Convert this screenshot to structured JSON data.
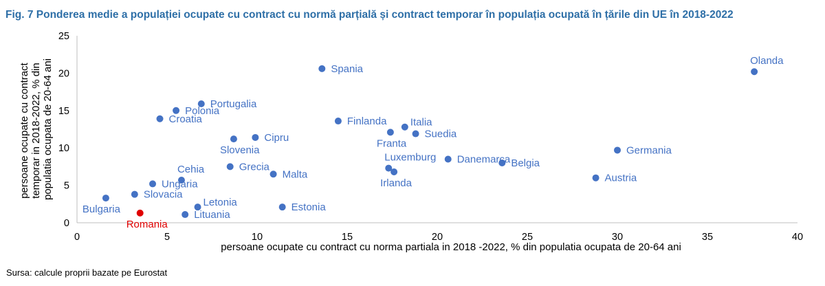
{
  "title": "Fig. 7 Ponderea medie a populației ocupate cu contract cu normă parțială și contract temporar în populația ocupată în țările din UE în 2018-2022",
  "source": "Sursa: calcule proprii bazate pe Eurostat",
  "chart_data": {
    "type": "scatter",
    "xlabel": "persoane ocupate cu contract cu norma partiala in 2018 -2022, % din populatia ocupata de 20-64 ani",
    "ylabel": [
      "persoane ocupate cu contract",
      "temporar in 2018-2022, % din",
      "populatia ocupata de 20-64 ani"
    ],
    "xlim": [
      0,
      40
    ],
    "ylim": [
      0,
      25
    ],
    "xticks": [
      0,
      5,
      10,
      15,
      20,
      25,
      30,
      35,
      40
    ],
    "yticks": [
      0,
      5,
      10,
      15,
      20,
      25
    ],
    "grid": false,
    "point_color": "#4472c4",
    "highlight_color": "#e00000",
    "points": [
      {
        "label": "Olanda",
        "x": 37.6,
        "y": 20.2,
        "label_pos": "above"
      },
      {
        "label": "Spania",
        "x": 13.6,
        "y": 20.6,
        "label_pos": "right"
      },
      {
        "label": "Portugalia",
        "x": 6.9,
        "y": 15.9,
        "label_pos": "right"
      },
      {
        "label": "Polonia",
        "x": 5.5,
        "y": 15.0,
        "label_pos": "right"
      },
      {
        "label": "Croatia",
        "x": 4.6,
        "y": 13.9,
        "label_pos": "right"
      },
      {
        "label": "Finlanda",
        "x": 14.5,
        "y": 13.6,
        "label_pos": "right"
      },
      {
        "label": "Italia",
        "x": 18.2,
        "y": 12.8,
        "label_pos": "right-up"
      },
      {
        "label": "Suedia",
        "x": 18.8,
        "y": 11.9,
        "label_pos": "right"
      },
      {
        "label": "Franta",
        "x": 17.4,
        "y": 12.1,
        "label_pos": "below"
      },
      {
        "label": "Cipru",
        "x": 9.9,
        "y": 11.4,
        "label_pos": "right"
      },
      {
        "label": "Slovenia",
        "x": 8.7,
        "y": 11.2,
        "label_pos": "below"
      },
      {
        "label": "Germania",
        "x": 30.0,
        "y": 9.7,
        "label_pos": "right"
      },
      {
        "label": "Danemarca",
        "x": 20.6,
        "y": 8.5,
        "label_pos": "right"
      },
      {
        "label": "Belgia",
        "x": 23.6,
        "y": 8.0,
        "label_pos": "right"
      },
      {
        "label": "Luxemburg",
        "x": 17.3,
        "y": 7.3,
        "label_pos": "above"
      },
      {
        "label": "Irlanda",
        "x": 17.6,
        "y": 6.8,
        "label_pos": "below"
      },
      {
        "label": "Grecia",
        "x": 8.5,
        "y": 7.5,
        "label_pos": "right"
      },
      {
        "label": "Malta",
        "x": 10.9,
        "y": 6.5,
        "label_pos": "right"
      },
      {
        "label": "Austria",
        "x": 28.8,
        "y": 6.0,
        "label_pos": "right"
      },
      {
        "label": "Cehia",
        "x": 5.8,
        "y": 5.7,
        "label_pos": "above"
      },
      {
        "label": "Ungaria",
        "x": 4.2,
        "y": 5.2,
        "label_pos": "right"
      },
      {
        "label": "Slovacia",
        "x": 3.2,
        "y": 3.8,
        "label_pos": "right"
      },
      {
        "label": "Bulgaria",
        "x": 1.6,
        "y": 3.3,
        "label_pos": "below-left"
      },
      {
        "label": "Estonia",
        "x": 11.4,
        "y": 2.1,
        "label_pos": "right"
      },
      {
        "label": "Letonia",
        "x": 6.7,
        "y": 2.1,
        "label_pos": "right-up"
      },
      {
        "label": "Lituania",
        "x": 6.0,
        "y": 1.1,
        "label_pos": "right"
      },
      {
        "label": "Romania",
        "x": 3.5,
        "y": 1.3,
        "label_pos": "below",
        "highlight": true
      }
    ]
  }
}
